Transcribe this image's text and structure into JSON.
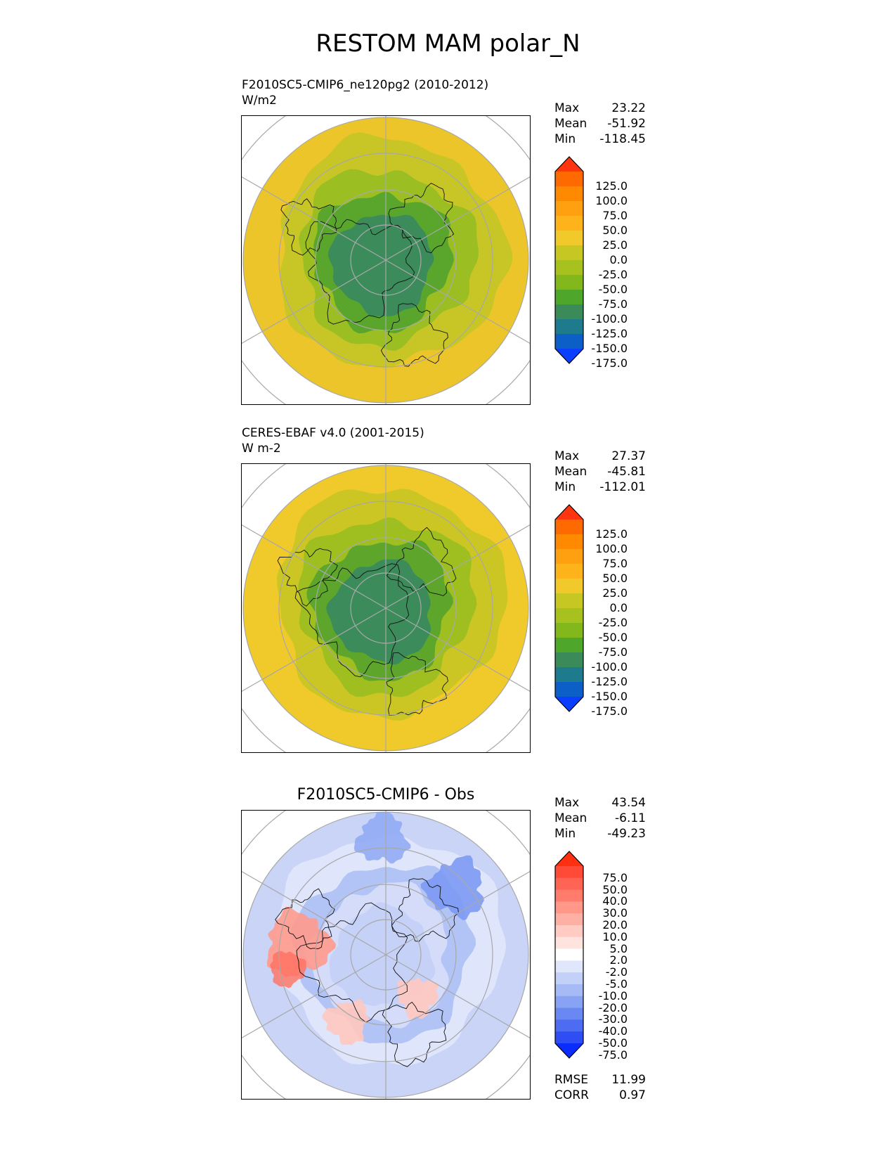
{
  "title": "RESTOM MAM polar_N",
  "panels": [
    {
      "id": "test",
      "title_line1": "F2010SC5-CMIP6_ne120pg2 (2010-2012)",
      "title_line2": "W/m2",
      "centered_title": "",
      "stats": {
        "max_label": "Max",
        "max": "23.22",
        "mean_label": "Mean",
        "mean": "-51.92",
        "min_label": "Min",
        "min": "-118.45"
      },
      "colorbar": {
        "labels": [
          "125.0",
          "100.0",
          "75.0",
          "50.0",
          "25.0",
          "0.0",
          "-25.0",
          "-50.0",
          "-75.0",
          "-100.0",
          "-125.0",
          "-150.0",
          "-175.0"
        ],
        "colors": [
          "#ff3510",
          "#ff6a00",
          "#ff8900",
          "#ffa010",
          "#ffb31a",
          "#f1c92a",
          "#c7c724",
          "#a7c11e",
          "#82b81c",
          "#4ea62a",
          "#3a8a5a",
          "#1d7b8d",
          "#0d5fc8",
          "#0a3fff"
        ]
      },
      "map": {
        "outer": "#ecc52a",
        "ring1": "#c8c626",
        "ring2": "#9bbf22",
        "ring3": "#5aa62c",
        "core": "#3b8c5a"
      }
    },
    {
      "id": "ref",
      "title_line1": "CERES-EBAF v4.0 (2001-2015)",
      "title_line2": "W m-2",
      "centered_title": "",
      "stats": {
        "max_label": "Max",
        "max": "27.37",
        "mean_label": "Mean",
        "mean": "-45.81",
        "min_label": "Min",
        "min": "-112.01"
      },
      "colorbar": {
        "labels": [
          "125.0",
          "100.0",
          "75.0",
          "50.0",
          "25.0",
          "0.0",
          "-25.0",
          "-50.0",
          "-75.0",
          "-100.0",
          "-125.0",
          "-150.0",
          "-175.0"
        ],
        "colors": [
          "#ff3510",
          "#ff6a00",
          "#ff8900",
          "#ffa010",
          "#ffb31a",
          "#f1c92a",
          "#c7c724",
          "#a7c11e",
          "#82b81c",
          "#4ea62a",
          "#3a8a5a",
          "#1d7b8d",
          "#0d5fc8",
          "#0a3fff"
        ]
      },
      "map": {
        "outer": "#f0c92a",
        "ring1": "#cbc624",
        "ring2": "#9fbf20",
        "ring3": "#5ea52c",
        "core": "#3b8c5a"
      }
    },
    {
      "id": "diff",
      "title_line1": "",
      "title_line2": "",
      "centered_title": "F2010SC5-CMIP6 - Obs",
      "stats": {
        "max_label": "Max",
        "max": "43.54",
        "mean_label": "Mean",
        "mean": "-6.11",
        "min_label": "Min",
        "min": "-49.23"
      },
      "colorbar": {
        "labels": [
          "75.0",
          "50.0",
          "40.0",
          "30.0",
          "20.0",
          "10.0",
          "5.0",
          "2.0",
          "-2.0",
          "-5.0",
          "-10.0",
          "-20.0",
          "-30.0",
          "-40.0",
          "-50.0",
          "-75.0"
        ],
        "colors": [
          "#ff3010",
          "#ff4a38",
          "#ff6455",
          "#ff7c6c",
          "#ff9888",
          "#ffb0a4",
          "#ffcbc2",
          "#ffe3de",
          "#ffffff",
          "#e0e6fb",
          "#c3d0f8",
          "#a6baf6",
          "#88a2f4",
          "#6a88f2",
          "#4d6cf2",
          "#2e4ef4",
          "#0b2cff"
        ]
      },
      "map": {
        "outer": "#c9d4f7",
        "ring1": "#dfe5fb",
        "ring2": "#b2c3f6",
        "ring3": "#d4dcf9",
        "core": "#c6d1f8"
      }
    }
  ],
  "diff_metrics": {
    "rmse_label": "RMSE",
    "rmse": "11.99",
    "corr_label": "CORR",
    "corr": "0.97"
  }
}
